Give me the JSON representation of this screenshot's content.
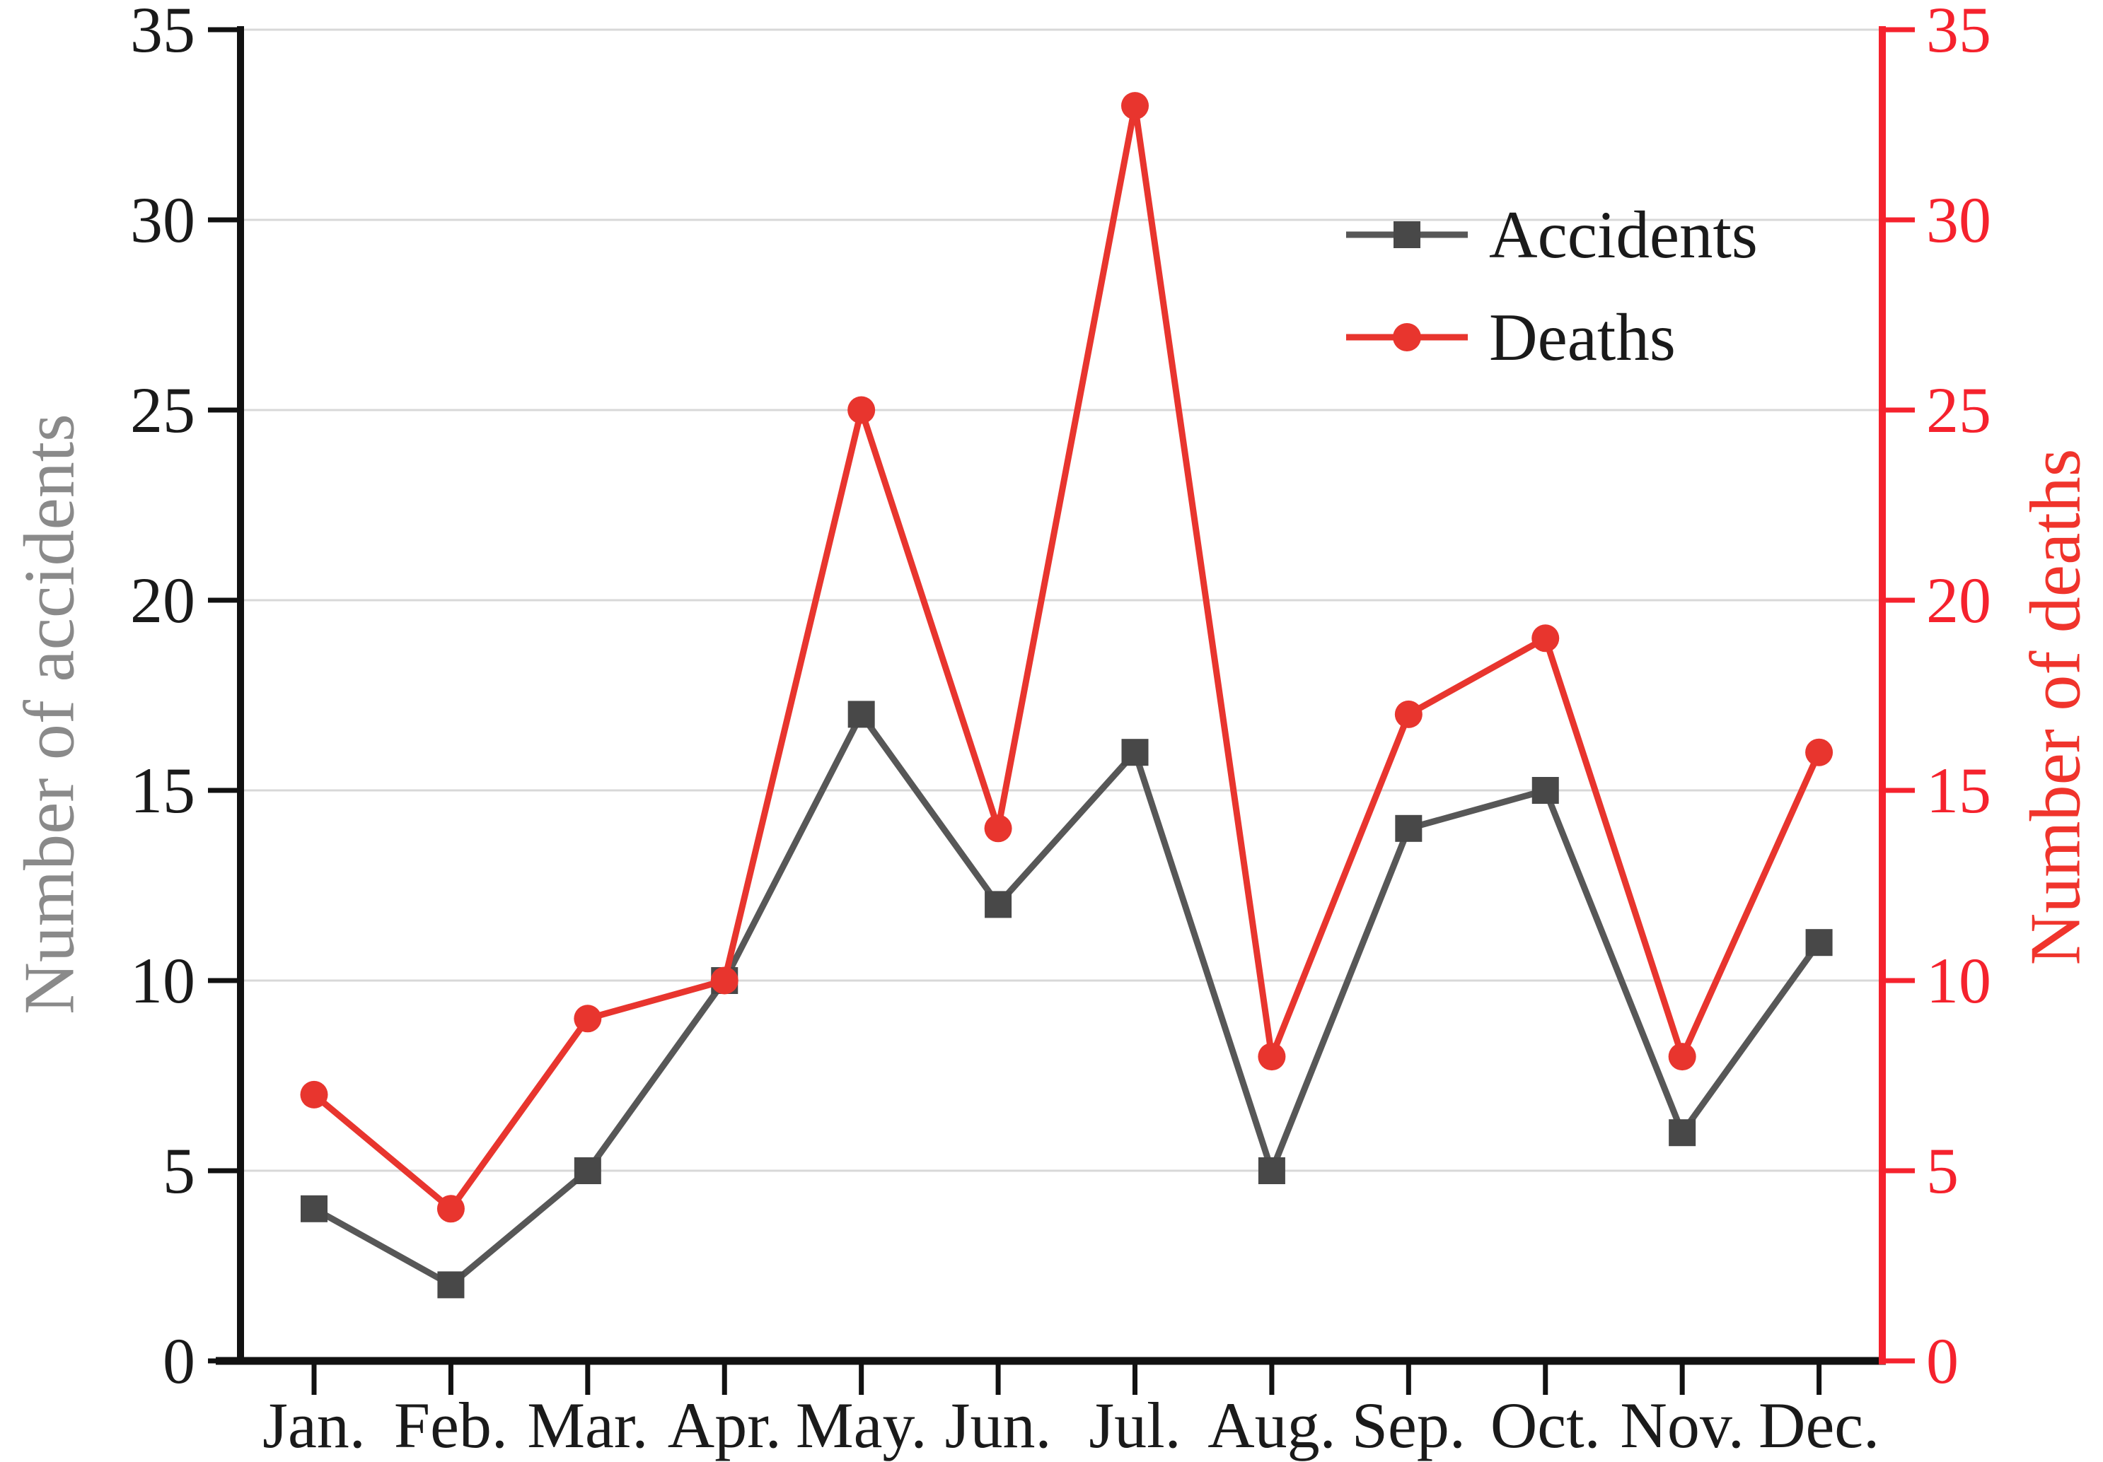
{
  "chart_data": {
    "type": "line",
    "title": "",
    "categories": [
      "Jan.",
      "Feb.",
      "Mar.",
      "Apr.",
      "May.",
      "Jun.",
      "Jul.",
      "Aug.",
      "Sep.",
      "Oct.",
      "Nov.",
      "Dec."
    ],
    "series": [
      {
        "name": "Accidents",
        "values": [
          4,
          2,
          5,
          10,
          17,
          12,
          16,
          5,
          14,
          15,
          6,
          11
        ],
        "marker": "square",
        "marker_color": "#484848",
        "line_color": "#575757"
      },
      {
        "name": "Deaths",
        "values": [
          7,
          4,
          9,
          10,
          25,
          14,
          33,
          8,
          17,
          19,
          8,
          16
        ],
        "marker": "circle",
        "marker_color": "#e8352e",
        "line_color": "#e8352e"
      }
    ],
    "y_left": {
      "label": "Number of accidents",
      "min": 0,
      "max": 35,
      "step": 5,
      "axis_color": "#111111",
      "tick_label_color": "#1a1a1a",
      "title_color": "#8a8a8a"
    },
    "y_right": {
      "label": "Number of deaths",
      "min": 0,
      "max": 35,
      "step": 5,
      "axis_color": "#f5222d",
      "tick_label_color": "#f5222d",
      "title_color": "#f0342c"
    },
    "x_axis": {
      "axis_color": "#111111",
      "tick_label_color": "#1a1a1a"
    },
    "grid": {
      "show": true,
      "color": "#d8d8d8",
      "orientation": "horizontal"
    },
    "legend": {
      "position": "inside-top-right"
    }
  }
}
